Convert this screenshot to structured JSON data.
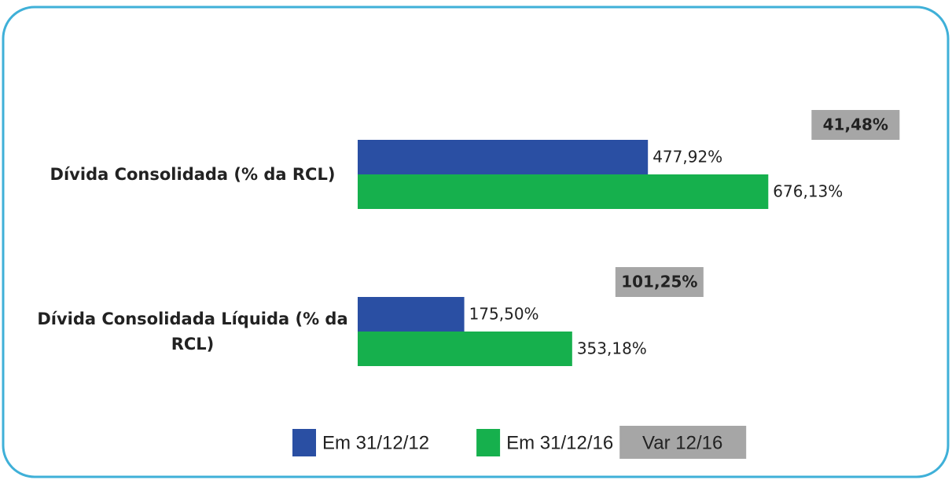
{
  "chart_data": {
    "type": "bar",
    "orientation": "horizontal",
    "categories": [
      "Dívida Consolidada (% da RCL)",
      "Dívida Consolidada Líquida (% da RCL)"
    ],
    "series": [
      {
        "name": "Em 31/12/12",
        "color": "#2a4fa3",
        "values": [
          477.92,
          175.5
        ],
        "value_labels": [
          "477,92%",
          "175,50%"
        ]
      },
      {
        "name": "Em 31/12/16",
        "color": "#16b04d",
        "values": [
          676.13,
          353.18
        ],
        "value_labels": [
          "676,13%",
          "353,18%"
        ]
      }
    ],
    "variation": {
      "name": "Var 12/16",
      "color": "#a6a6a6",
      "values": [
        41.48,
        101.25
      ],
      "value_labels": [
        "41,48%",
        "101,25%"
      ]
    }
  }
}
